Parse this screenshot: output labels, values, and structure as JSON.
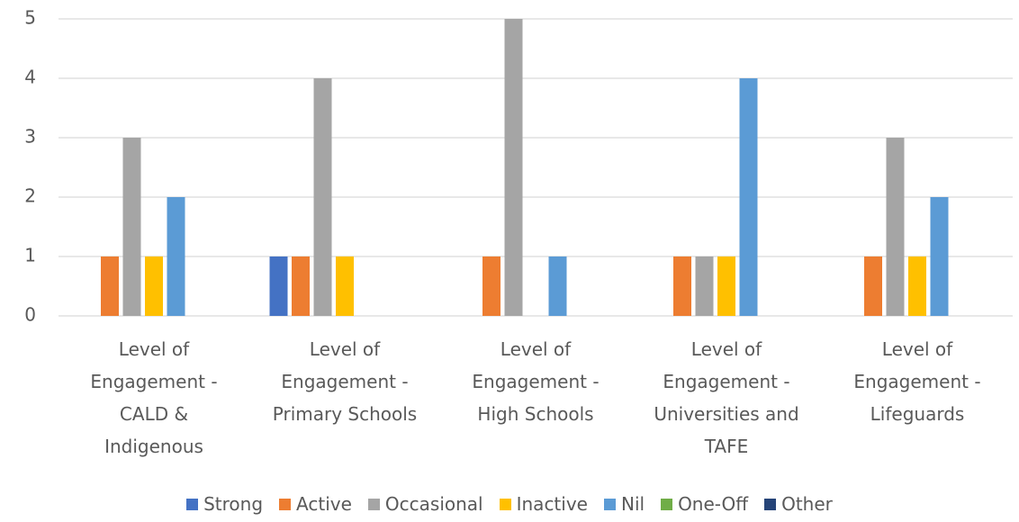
{
  "chart_data": {
    "type": "bar",
    "categories": [
      "Level of Engagement - CALD & Indigenous",
      "Level of Engagement - Primary Schools",
      "Level of Engagement - High Schools",
      "Level of Engagement - Universities and TAFE",
      "Level of Engagement - Lifeguards"
    ],
    "series": [
      {
        "name": "Strong",
        "color": "#4472c4",
        "values": [
          0,
          1,
          0,
          0,
          0
        ]
      },
      {
        "name": "Active",
        "color": "#ed7d31",
        "values": [
          1,
          1,
          1,
          1,
          1
        ]
      },
      {
        "name": "Occasional",
        "color": "#a5a5a5",
        "values": [
          3,
          4,
          5,
          1,
          3
        ]
      },
      {
        "name": "Inactive",
        "color": "#ffc000",
        "values": [
          1,
          1,
          0,
          1,
          1
        ]
      },
      {
        "name": "Nil",
        "color": "#5b9bd5",
        "values": [
          2,
          0,
          1,
          4,
          2
        ]
      },
      {
        "name": "One-Off",
        "color": "#70ad47",
        "values": [
          0,
          0,
          0,
          0,
          0
        ]
      },
      {
        "name": "Other",
        "color": "#264478",
        "values": [
          0,
          0,
          0,
          0,
          0
        ]
      }
    ],
    "ylim": [
      0,
      5
    ],
    "yticks": [
      0,
      1,
      2,
      3,
      4,
      5
    ],
    "grid": true,
    "legend": "bottom"
  }
}
